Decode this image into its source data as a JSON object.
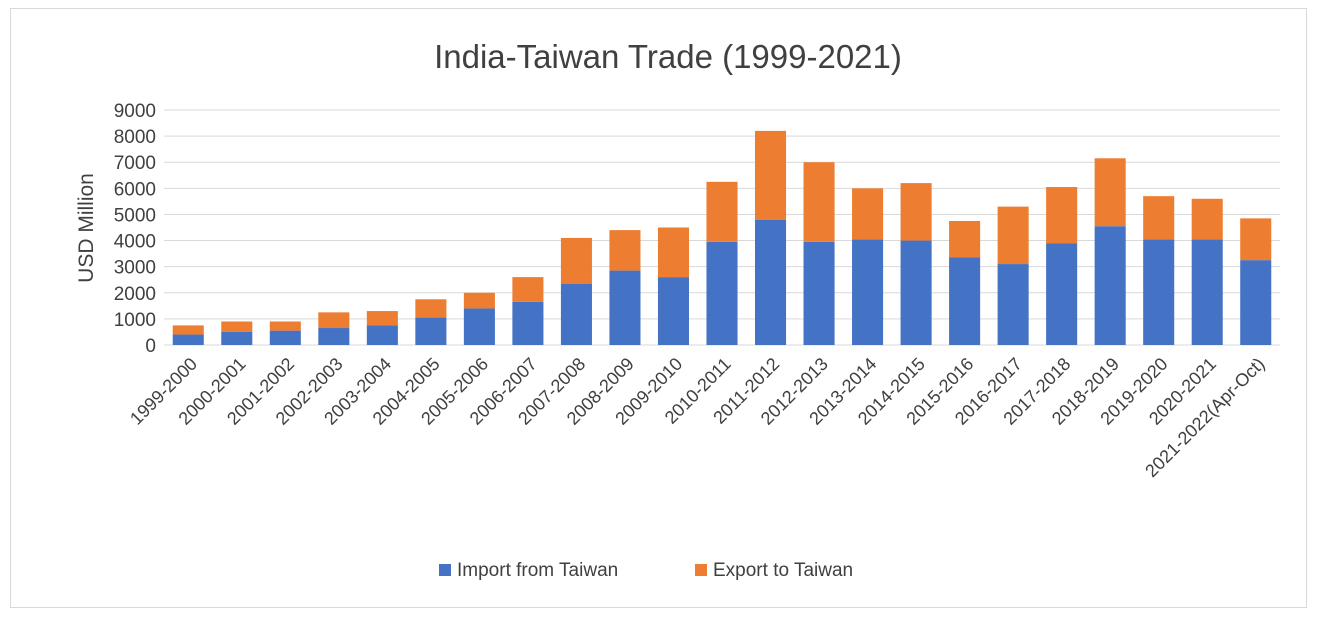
{
  "chart_data": {
    "type": "bar",
    "stacked": true,
    "title": "India-Taiwan Trade (1999-2021)",
    "xlabel": "",
    "ylabel": "USD Million",
    "ylim": [
      0,
      9000
    ],
    "yticks": [
      0,
      1000,
      2000,
      3000,
      4000,
      5000,
      6000,
      7000,
      8000,
      9000
    ],
    "grid": true,
    "legend_position": "bottom",
    "categories": [
      "1999-2000",
      "2000-2001",
      "2001-2002",
      "2002-2003",
      "2003-2004",
      "2004-2005",
      "2005-2006",
      "2006-2007",
      "2007-2008",
      "2008-2009",
      "2009-2010",
      "2010-2011",
      "2011-2012",
      "2012-2013",
      "2013-2014",
      "2014-2015",
      "2015-2016",
      "2016-2017",
      "2017-2018",
      "2018-2019",
      "2019-2020",
      "2020-2021",
      "2021-2022(Apr-Oct)"
    ],
    "series": [
      {
        "name": "Import from Taiwan",
        "color": "#4472c4",
        "values": [
          400,
          500,
          550,
          650,
          750,
          1050,
          1400,
          1650,
          2350,
          2850,
          2600,
          3950,
          4800,
          3950,
          4050,
          4000,
          3350,
          3100,
          3900,
          4550,
          4050,
          4050,
          3250
        ]
      },
      {
        "name": "Export to Taiwan",
        "color": "#ed7d31",
        "values": [
          350,
          400,
          350,
          600,
          550,
          700,
          600,
          950,
          1750,
          1550,
          1900,
          2300,
          3400,
          3050,
          1950,
          2200,
          1400,
          2200,
          2150,
          2600,
          1650,
          1550,
          1600
        ]
      }
    ]
  }
}
